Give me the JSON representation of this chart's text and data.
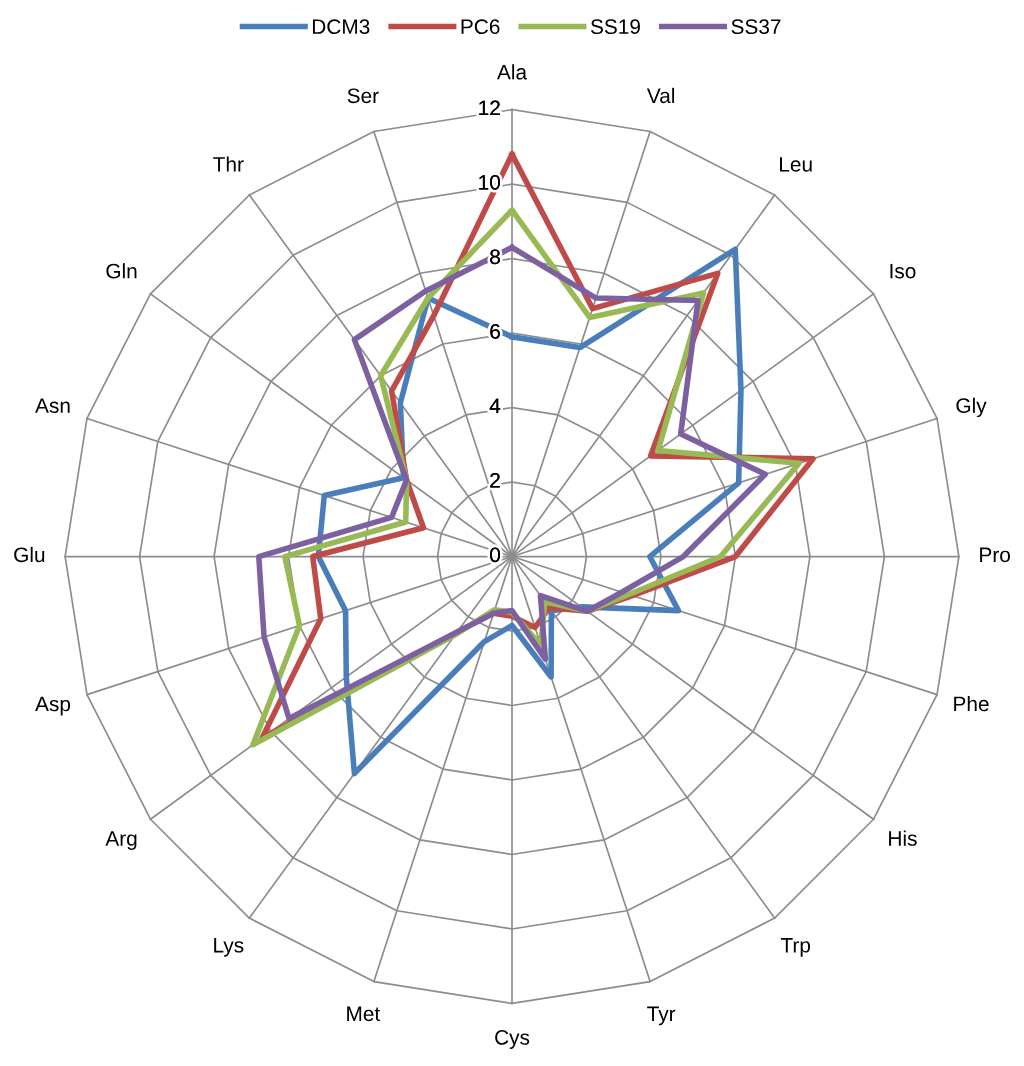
{
  "chart_data": {
    "type": "radar",
    "categories": [
      "Ala",
      "Val",
      "Leu",
      "Iso",
      "Gly",
      "Pro",
      "Phe",
      "His",
      "Trp",
      "Tyr",
      "Cys",
      "Met",
      "Lys",
      "Arg",
      "Asp",
      "Glu",
      "Asn",
      "Gln",
      "Thr",
      "Ser"
    ],
    "ylim": [
      0,
      12
    ],
    "yticks": [
      0,
      2,
      4,
      6,
      8,
      10,
      12
    ],
    "grid": true,
    "legend": "top",
    "series": [
      {
        "name": "DCM3",
        "color": "#4a7ebb",
        "values": [
          5.9,
          5.9,
          10.2,
          7.6,
          6.4,
          3.7,
          4.7,
          2.3,
          1.8,
          3.4,
          1.85,
          2.4,
          7.2,
          5.5,
          4.7,
          5.2,
          5.3,
          3.6,
          5.1,
          7.3
        ]
      },
      {
        "name": "PC6",
        "color": "#be4b48",
        "values": [
          10.8,
          7.0,
          9.4,
          4.6,
          8.5,
          6.0,
          3.4,
          2.5,
          1.7,
          2.0,
          1.6,
          1.6,
          2.5,
          8.3,
          5.4,
          5.35,
          2.5,
          3.5,
          5.5,
          6.8
        ]
      },
      {
        "name": "SS19",
        "color": "#98b954",
        "values": [
          9.3,
          6.75,
          8.75,
          4.85,
          8.1,
          5.6,
          3.3,
          2.5,
          1.5,
          2.5,
          1.5,
          1.5,
          2.6,
          8.6,
          6.0,
          6.1,
          3.0,
          3.5,
          6.0,
          7.3
        ]
      },
      {
        "name": "SS37",
        "color": "#7d60a0",
        "values": [
          8.3,
          7.3,
          8.5,
          5.6,
          7.15,
          4.6,
          3.1,
          2.5,
          1.3,
          2.9,
          1.45,
          1.6,
          2.5,
          7.4,
          7.0,
          6.8,
          3.4,
          3.5,
          7.2,
          7.5
        ]
      }
    ]
  }
}
